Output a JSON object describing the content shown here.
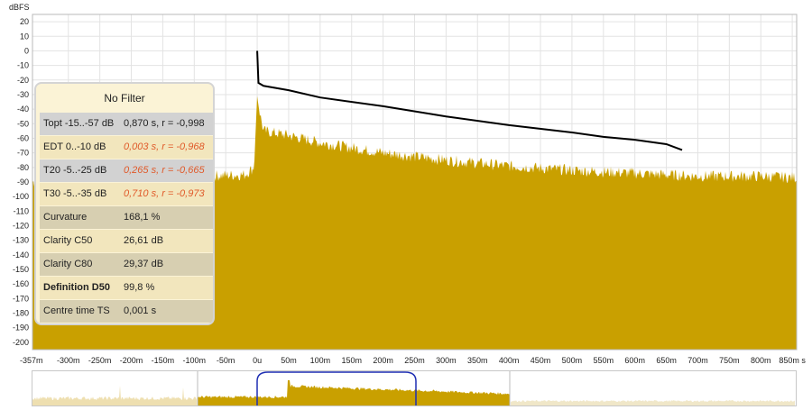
{
  "units_label": "dBFS",
  "y_ticks": [
    "20",
    "10",
    "0",
    "-10",
    "-20",
    "-30",
    "-40",
    "-50",
    "-60",
    "-70",
    "-80",
    "-90",
    "-100",
    "-110",
    "-120",
    "-130",
    "-140",
    "-150",
    "-160",
    "-170",
    "-180",
    "-190",
    "-200"
  ],
  "x_ticks": [
    "-357m",
    "-300m",
    "-250m",
    "-200m",
    "-150m",
    "-100m",
    "-50m",
    "0u",
    "50m",
    "100m",
    "150m",
    "200m",
    "250m",
    "300m",
    "350m",
    "400m",
    "450m",
    "500m",
    "550m",
    "600m",
    "650m",
    "700m",
    "750m",
    "800m",
    "850m s"
  ],
  "panel": {
    "title": "No Filter",
    "rows": [
      {
        "label": "Topt -15..-57 dB",
        "value": "0,870 s,  r = -0,998",
        "style": "gray",
        "value_color": "normal"
      },
      {
        "label": "EDT  0..-10 dB",
        "value": "0,003 s, r = -0,968",
        "style": "cream",
        "value_color": "red"
      },
      {
        "label": "T20 -5..-25 dB",
        "value": "0,265 s, r = -0,665",
        "style": "gray",
        "value_color": "red"
      },
      {
        "label": "T30 -5..-35 dB",
        "value": "0,710 s, r = -0,973",
        "style": "cream",
        "value_color": "red"
      },
      {
        "label": "Curvature",
        "value": "168,1 %",
        "style": "tan",
        "value_color": "normal"
      },
      {
        "label": "Clarity C50",
        "value": "26,61 dB",
        "style": "cream",
        "value_color": "normal"
      },
      {
        "label": "Clarity C80",
        "value": "29,37 dB",
        "style": "tan",
        "value_color": "normal"
      },
      {
        "label": "Definition D50",
        "value": "99,8 %",
        "style": "cream",
        "value_color": "normal"
      },
      {
        "label": "Centre time TS",
        "value": "0,001 s",
        "style": "tan",
        "value_color": "normal"
      }
    ]
  },
  "chart_data": {
    "type": "area",
    "ylabel": "dBFS",
    "xlabel": "",
    "xlim": [
      -0.357,
      0.857
    ],
    "ylim": [
      -205,
      25
    ],
    "grid": true,
    "colors": {
      "fill": "#c9a000",
      "decay": "#000000"
    },
    "impulse_envelope": {
      "x": [
        -0.357,
        -0.2,
        -0.1,
        -0.02,
        -0.005,
        0.0,
        0.002,
        0.01,
        0.05,
        0.1,
        0.2,
        0.3,
        0.4,
        0.5,
        0.6,
        0.7,
        0.8,
        0.857
      ],
      "y": [
        -90,
        -88,
        -86,
        -85,
        -80,
        -30,
        -38,
        -55,
        -58,
        -63,
        -70,
        -75,
        -79,
        -82,
        -84,
        -86,
        -86,
        -87
      ]
    },
    "schroeder_decay": {
      "x": [
        0.0,
        0.002,
        0.01,
        0.05,
        0.1,
        0.2,
        0.3,
        0.4,
        0.5,
        0.55,
        0.6,
        0.65,
        0.675
      ],
      "y": [
        0,
        -22,
        -24,
        -27,
        -32,
        -38,
        -45,
        -51,
        -56,
        -59,
        -61,
        -64,
        -68
      ]
    }
  }
}
